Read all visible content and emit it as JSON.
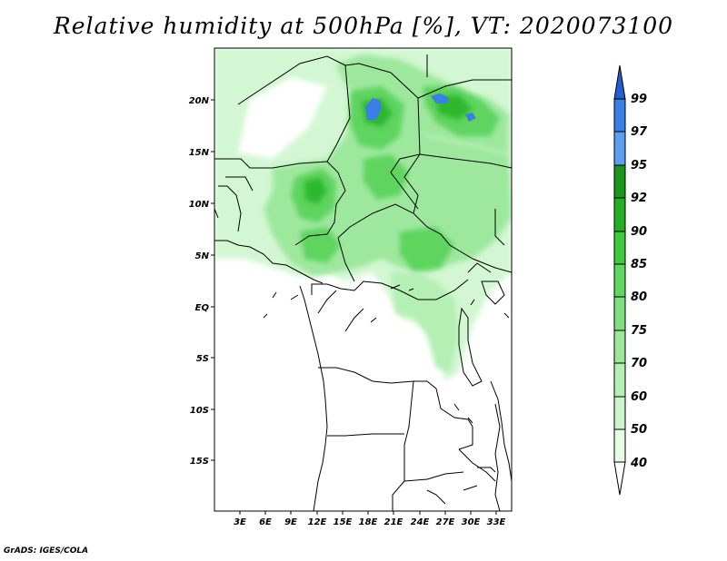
{
  "title": "Relative humidity at 500hPa [%], VT: 2020073100",
  "credit": "GrADS: IGES/COLA",
  "map": {
    "lat_labels": [
      "20N",
      "15N",
      "10N",
      "5N",
      "EQ",
      "5S",
      "10S",
      "15S"
    ],
    "lon_labels": [
      "3E",
      "6E",
      "9E",
      "12E",
      "15E",
      "18E",
      "21E",
      "24E",
      "27E",
      "30E",
      "33E"
    ]
  },
  "colorbar": {
    "levels": [
      "40",
      "50",
      "60",
      "70",
      "75",
      "80",
      "85",
      "90",
      "92",
      "95",
      "97",
      "99"
    ],
    "colors": [
      "#ffffff",
      "#e6fbe6",
      "#cdf5cd",
      "#b4efb4",
      "#9be89b",
      "#7fe07f",
      "#5fd65f",
      "#3ec93e",
      "#22b022",
      "#1a961a",
      "#5a9ff0",
      "#3a7fe6",
      "#1f5fd4"
    ]
  },
  "field_colors": {
    "light": "#d2f7d2",
    "mid": "#9ee89e",
    "strong": "#5fd45f",
    "deep": "#2fb82f",
    "saturated": "#3a7fe6"
  }
}
